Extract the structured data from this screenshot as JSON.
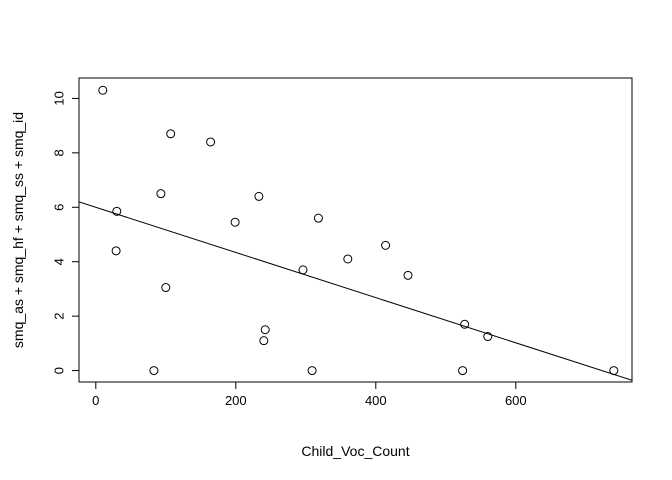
{
  "chart_data": {
    "type": "scatter",
    "title": "",
    "xlabel": "Child_Voc_Count",
    "ylabel": "smq_as + smq_hf + smq_ss + smq_id",
    "xlim": [
      -24,
      766
    ],
    "ylim": [
      -0.42,
      10.75
    ],
    "xticks": [
      0,
      200,
      400,
      600
    ],
    "yticks": [
      0,
      2,
      4,
      6,
      8,
      10
    ],
    "grid": false,
    "legend": "none",
    "points": [
      {
        "x": 10,
        "y": 10.3
      },
      {
        "x": 107,
        "y": 8.7
      },
      {
        "x": 164,
        "y": 8.4
      },
      {
        "x": 93,
        "y": 6.5
      },
      {
        "x": 233,
        "y": 6.4
      },
      {
        "x": 30,
        "y": 5.85
      },
      {
        "x": 318,
        "y": 5.6
      },
      {
        "x": 199,
        "y": 5.45
      },
      {
        "x": 414,
        "y": 4.6
      },
      {
        "x": 29,
        "y": 4.4
      },
      {
        "x": 360,
        "y": 4.1
      },
      {
        "x": 296,
        "y": 3.7
      },
      {
        "x": 446,
        "y": 3.5
      },
      {
        "x": 100,
        "y": 3.05
      },
      {
        "x": 527,
        "y": 1.7
      },
      {
        "x": 242,
        "y": 1.5
      },
      {
        "x": 560,
        "y": 1.25
      },
      {
        "x": 240,
        "y": 1.1
      },
      {
        "x": 83,
        "y": 0
      },
      {
        "x": 309,
        "y": 0
      },
      {
        "x": 524,
        "y": 0
      },
      {
        "x": 740,
        "y": 0
      }
    ],
    "regression_line": {
      "intercept": 6.0,
      "slope": -0.0083
    }
  }
}
